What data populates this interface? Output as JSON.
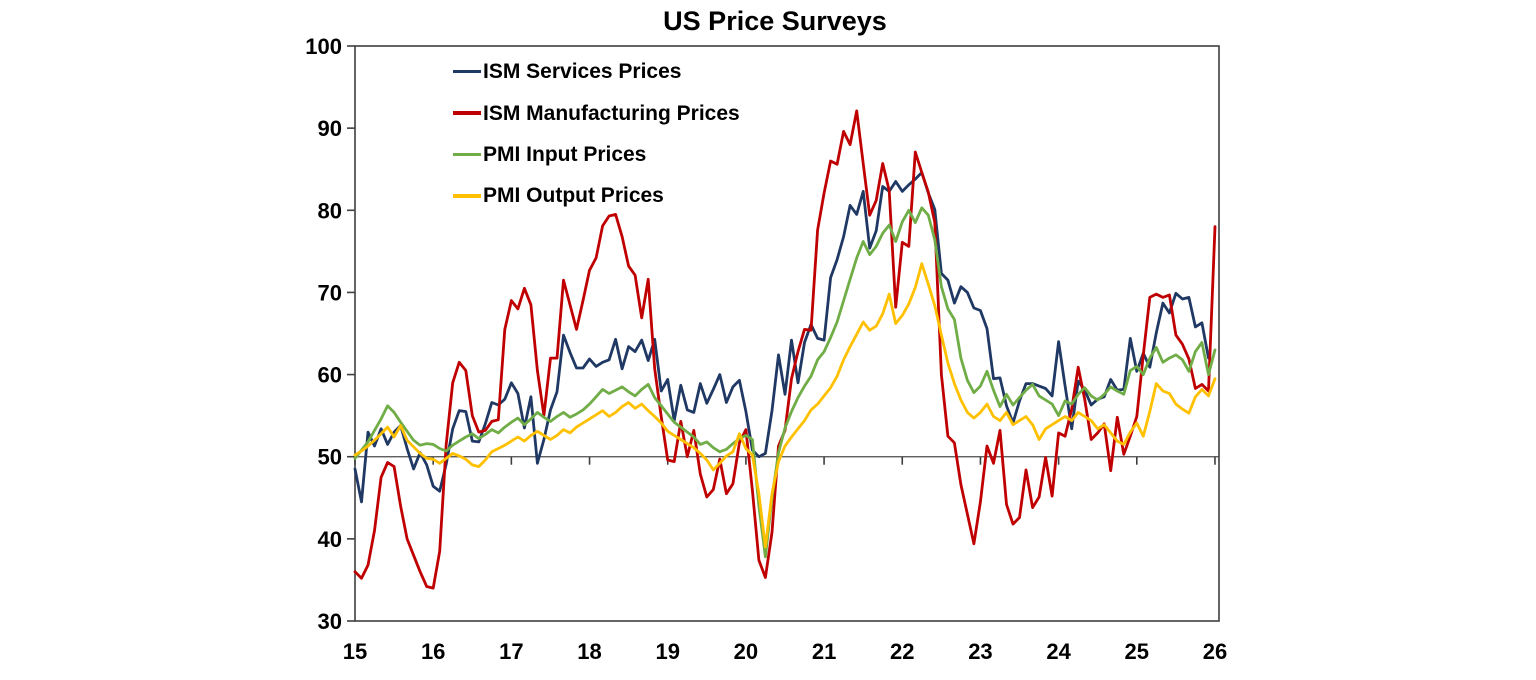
{
  "title": "US Price Surveys",
  "chart_data": {
    "type": "line",
    "title": "US Price Surveys",
    "x_unit": "month",
    "x_start": "2015-01",
    "x_end": "2026-01",
    "x_tick_labels": [
      "15",
      "16",
      "17",
      "18",
      "19",
      "20",
      "21",
      "22",
      "23",
      "24",
      "25",
      "26"
    ],
    "yticks": [
      30,
      40,
      50,
      60,
      70,
      80,
      90,
      100
    ],
    "ylim": [
      30,
      100
    ],
    "reference_line": 50,
    "grid": false,
    "legend_position": "top-left-inside",
    "series": [
      {
        "name": "ISM Services Prices",
        "color": "#1F3864",
        "values": [
          48.5,
          44.5,
          53,
          51.3,
          53.4,
          51.5,
          53,
          53.8,
          51,
          48.5,
          50.5,
          49,
          46.4,
          45.8,
          49.1,
          53.4,
          55.6,
          55.5,
          51.9,
          51.8,
          54,
          56.6,
          56.3,
          57,
          59,
          57.7,
          53.5,
          57.3,
          49.2,
          52.1,
          55.7,
          57.9,
          64.8,
          62.7,
          60.8,
          60.8,
          61.9,
          61,
          61.5,
          61.8,
          64.3,
          60.7,
          63.4,
          62.8,
          64.2,
          61.7,
          64.3,
          58,
          59.4,
          54.4,
          58.7,
          55.7,
          55.4,
          58.9,
          56.5,
          58.2,
          60,
          56.6,
          58.5,
          59.3,
          55.5,
          50.8,
          50,
          50.4,
          55.6,
          62.4,
          57.6,
          64.2,
          59,
          63.9,
          66.1,
          64.4,
          64.2,
          71.8,
          74,
          76.8,
          80.6,
          79.5,
          82.3,
          75.4,
          77.5,
          82.9,
          82.3,
          83.5,
          82.3,
          83.1,
          83.8,
          84.6,
          82.1,
          80.1,
          72.3,
          71.5,
          68.7,
          70.7,
          70,
          68.1,
          67.8,
          65.6,
          59.5,
          59.6,
          56.2,
          54.1,
          56.8,
          58.9,
          58.9,
          58.6,
          58.3,
          57.4,
          64,
          58.6,
          53.4,
          59.2,
          58.1,
          56.3,
          57,
          57.3,
          59.4,
          58.1,
          58.2,
          64.4,
          60.4,
          62.6,
          60.9,
          65.1,
          68.7,
          67.5,
          69.9,
          69.2,
          69.4,
          65.8,
          66.3,
          62
        ]
      },
      {
        "name": "ISM Manufacturing Prices",
        "color": "#C00000",
        "values": [
          36,
          35.2,
          36.8,
          41,
          47.5,
          49.3,
          48.8,
          44,
          40,
          38,
          36,
          34.2,
          34,
          38.5,
          51.5,
          59,
          61.5,
          60.5,
          55,
          53,
          53.2,
          54.3,
          54.5,
          65.5,
          69,
          68,
          70.5,
          68.5,
          60.5,
          55,
          62,
          62,
          71.5,
          68.5,
          65.5,
          69,
          72.7,
          74.2,
          78.1,
          79.3,
          79.5,
          76.8,
          73.2,
          72.1,
          66.9,
          71.6,
          60.7,
          54.9,
          49.6,
          49.4,
          54.3,
          50,
          53.2,
          47.9,
          45.1,
          46,
          49.7,
          45.5,
          46.7,
          51.7,
          53.3,
          45.9,
          37.4,
          35.3,
          40.8,
          51.3,
          53.2,
          59.5,
          62.8,
          65.5,
          65.4,
          77.6,
          82.1,
          86,
          85.6,
          89.6,
          88,
          92.1,
          85.7,
          79.4,
          81.2,
          85.7,
          82.4,
          68.2,
          76.1,
          75.6,
          87.1,
          84.6,
          82.2,
          78.5,
          60,
          52.5,
          51.7,
          46.6,
          43,
          39.4,
          44.5,
          51.3,
          49.2,
          53.2,
          44.2,
          41.8,
          42.6,
          48.4,
          43.8,
          45.1,
          49.9,
          45.2,
          52.9,
          52.5,
          55.8,
          60.9,
          57,
          52.1,
          52.9,
          54,
          48.3,
          54.8,
          50.3,
          52.5,
          54.9,
          62.4,
          69.4,
          69.8,
          69.4,
          69.7,
          64.8,
          63.7,
          61.9,
          58.3,
          58.8,
          58,
          78
        ]
      },
      {
        "name": "PMI Input Prices",
        "color": "#70AD47",
        "values": [
          49.8,
          50.8,
          51.8,
          53.2,
          54.6,
          56.2,
          55.4,
          54.2,
          53.1,
          52,
          51.4,
          51.6,
          51.5,
          51,
          50.7,
          51.4,
          51.9,
          52.4,
          52.8,
          52.2,
          52.7,
          53.3,
          52.9,
          53.6,
          54.2,
          54.7,
          53.9,
          54.6,
          55.4,
          54.8,
          54.3,
          54.9,
          55.4,
          54.8,
          55.2,
          55.7,
          56.4,
          57.3,
          58.2,
          57.7,
          58.1,
          58.5,
          57.9,
          57.4,
          58.2,
          58.8,
          57.2,
          56.2,
          55.2,
          54.2,
          53.6,
          53,
          52.4,
          51.5,
          51.8,
          51.1,
          50.6,
          50.9,
          51.6,
          52.2,
          52.6,
          52.1,
          44,
          37.8,
          45,
          50.5,
          53.5,
          55.5,
          57.2,
          58.6,
          59.8,
          61.8,
          62.8,
          64.5,
          66.4,
          69,
          71.6,
          74.2,
          76.2,
          74.6,
          75.6,
          77.2,
          78.2,
          76.2,
          78.6,
          80,
          78.5,
          80.3,
          79.4,
          76.4,
          70.7,
          68,
          66.7,
          62,
          59.3,
          57.8,
          58.6,
          60.4,
          58.1,
          56.1,
          57.6,
          56.3,
          57.2,
          58.1,
          58.8,
          57.4,
          56.9,
          56.4,
          55,
          56.8,
          56.4,
          57.6,
          58.4,
          57.4,
          56.9,
          57.6,
          58.5,
          58,
          57.6,
          60.5,
          61,
          60,
          62,
          63.3,
          61.5,
          62,
          62.4,
          61.8,
          60.4,
          62.8,
          63.9,
          60,
          63
        ]
      },
      {
        "name": "PMI Output Prices",
        "color": "#FFC000",
        "values": [
          50.2,
          50.7,
          51.3,
          52,
          52.8,
          53.6,
          52.4,
          53.8,
          52,
          51.2,
          50.4,
          49.8,
          49.7,
          49.2,
          49.8,
          50.4,
          50.1,
          49.7,
          49,
          48.8,
          49.6,
          50.6,
          51,
          51.4,
          51.9,
          52.4,
          51.9,
          52.6,
          53.1,
          52.6,
          52.1,
          52.6,
          53.3,
          52.9,
          53.6,
          54.1,
          54.6,
          55.1,
          55.6,
          54.9,
          55.4,
          56.1,
          56.6,
          55.9,
          56.4,
          55.6,
          54.9,
          54.1,
          53.1,
          52.6,
          52.1,
          51.6,
          51.1,
          50.4,
          49.6,
          48.4,
          49.2,
          50.1,
          50.6,
          52.8,
          51,
          50.2,
          45.5,
          39,
          45.5,
          49.4,
          51.3,
          52.4,
          53.4,
          54.4,
          55.7,
          56.4,
          57.4,
          58.4,
          59.8,
          61.8,
          63.4,
          64.9,
          66.4,
          65.4,
          65.9,
          67.4,
          69.8,
          66.2,
          67.2,
          68.6,
          70.6,
          73.5,
          71,
          68.4,
          64.8,
          61.4,
          58.9,
          56.9,
          55.4,
          54.7,
          55.4,
          56.4,
          54.9,
          54.4,
          55.4,
          53.9,
          54.4,
          54.9,
          53.9,
          52.1,
          53.4,
          53.9,
          54.4,
          54.9,
          54.4,
          55.4,
          54.9,
          54.4,
          53.4,
          53.9,
          52.9,
          51.9,
          51.5,
          53,
          54.1,
          52.5,
          55.5,
          58.9,
          58,
          57.7,
          56.4,
          55.8,
          55.3,
          57.3,
          58.2,
          57.4,
          59.5
        ]
      }
    ]
  }
}
